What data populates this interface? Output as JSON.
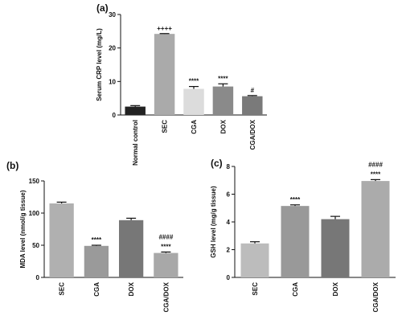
{
  "chart_data": [
    {
      "type": "bar",
      "label": "(a)",
      "ylabel": "Serum CRP level (mg/L)",
      "categories": [
        "Normal control",
        "SEC",
        "CGA",
        "DOX",
        "CGA/DOX"
      ],
      "values": [
        2.5,
        24.2,
        7.8,
        8.5,
        5.6
      ],
      "errors": [
        0.3,
        0.1,
        0.7,
        0.8,
        0.2
      ],
      "colors": [
        "#222222",
        "#aaaaaa",
        "#dcdcdc",
        "#8a8a8a",
        "#7a7a7a"
      ],
      "annotations": [
        [],
        [
          "++++"
        ],
        [
          "****"
        ],
        [
          "****"
        ],
        [
          "#"
        ]
      ],
      "ylim": [
        0,
        30
      ],
      "yticks": [
        0,
        10,
        20,
        30
      ]
    },
    {
      "type": "bar",
      "label": "(b)",
      "ylabel": "MDA level (nmol/g tissue)",
      "categories": [
        "SEC",
        "CGA",
        "DOX",
        "CGA/DOX"
      ],
      "values": [
        115,
        49,
        89,
        38
      ],
      "errors": [
        2,
        1,
        3,
        1.5
      ],
      "colors": [
        "#b0b0b0",
        "#9a9a9a",
        "#777777",
        "#a8a8a8"
      ],
      "annotations": [
        [],
        [
          "****"
        ],
        [],
        [
          "####",
          "****"
        ]
      ],
      "ylim": [
        0,
        150
      ],
      "yticks": [
        0,
        50,
        100,
        150
      ]
    },
    {
      "type": "bar",
      "label": "(c)",
      "ylabel": "GSH level (mg/g tissue)",
      "categories": [
        "SEC",
        "CGA",
        "DOX",
        "CGA/DOX"
      ],
      "values": [
        2.45,
        5.15,
        4.2,
        6.95
      ],
      "errors": [
        0.12,
        0.08,
        0.2,
        0.1
      ],
      "colors": [
        "#bcbcbc",
        "#999999",
        "#777777",
        "#ababab"
      ],
      "annotations": [
        [],
        [
          "****"
        ],
        [],
        [
          "####",
          "****"
        ]
      ],
      "ylim": [
        0,
        8
      ],
      "yticks": [
        0,
        2,
        4,
        6,
        8
      ]
    }
  ]
}
